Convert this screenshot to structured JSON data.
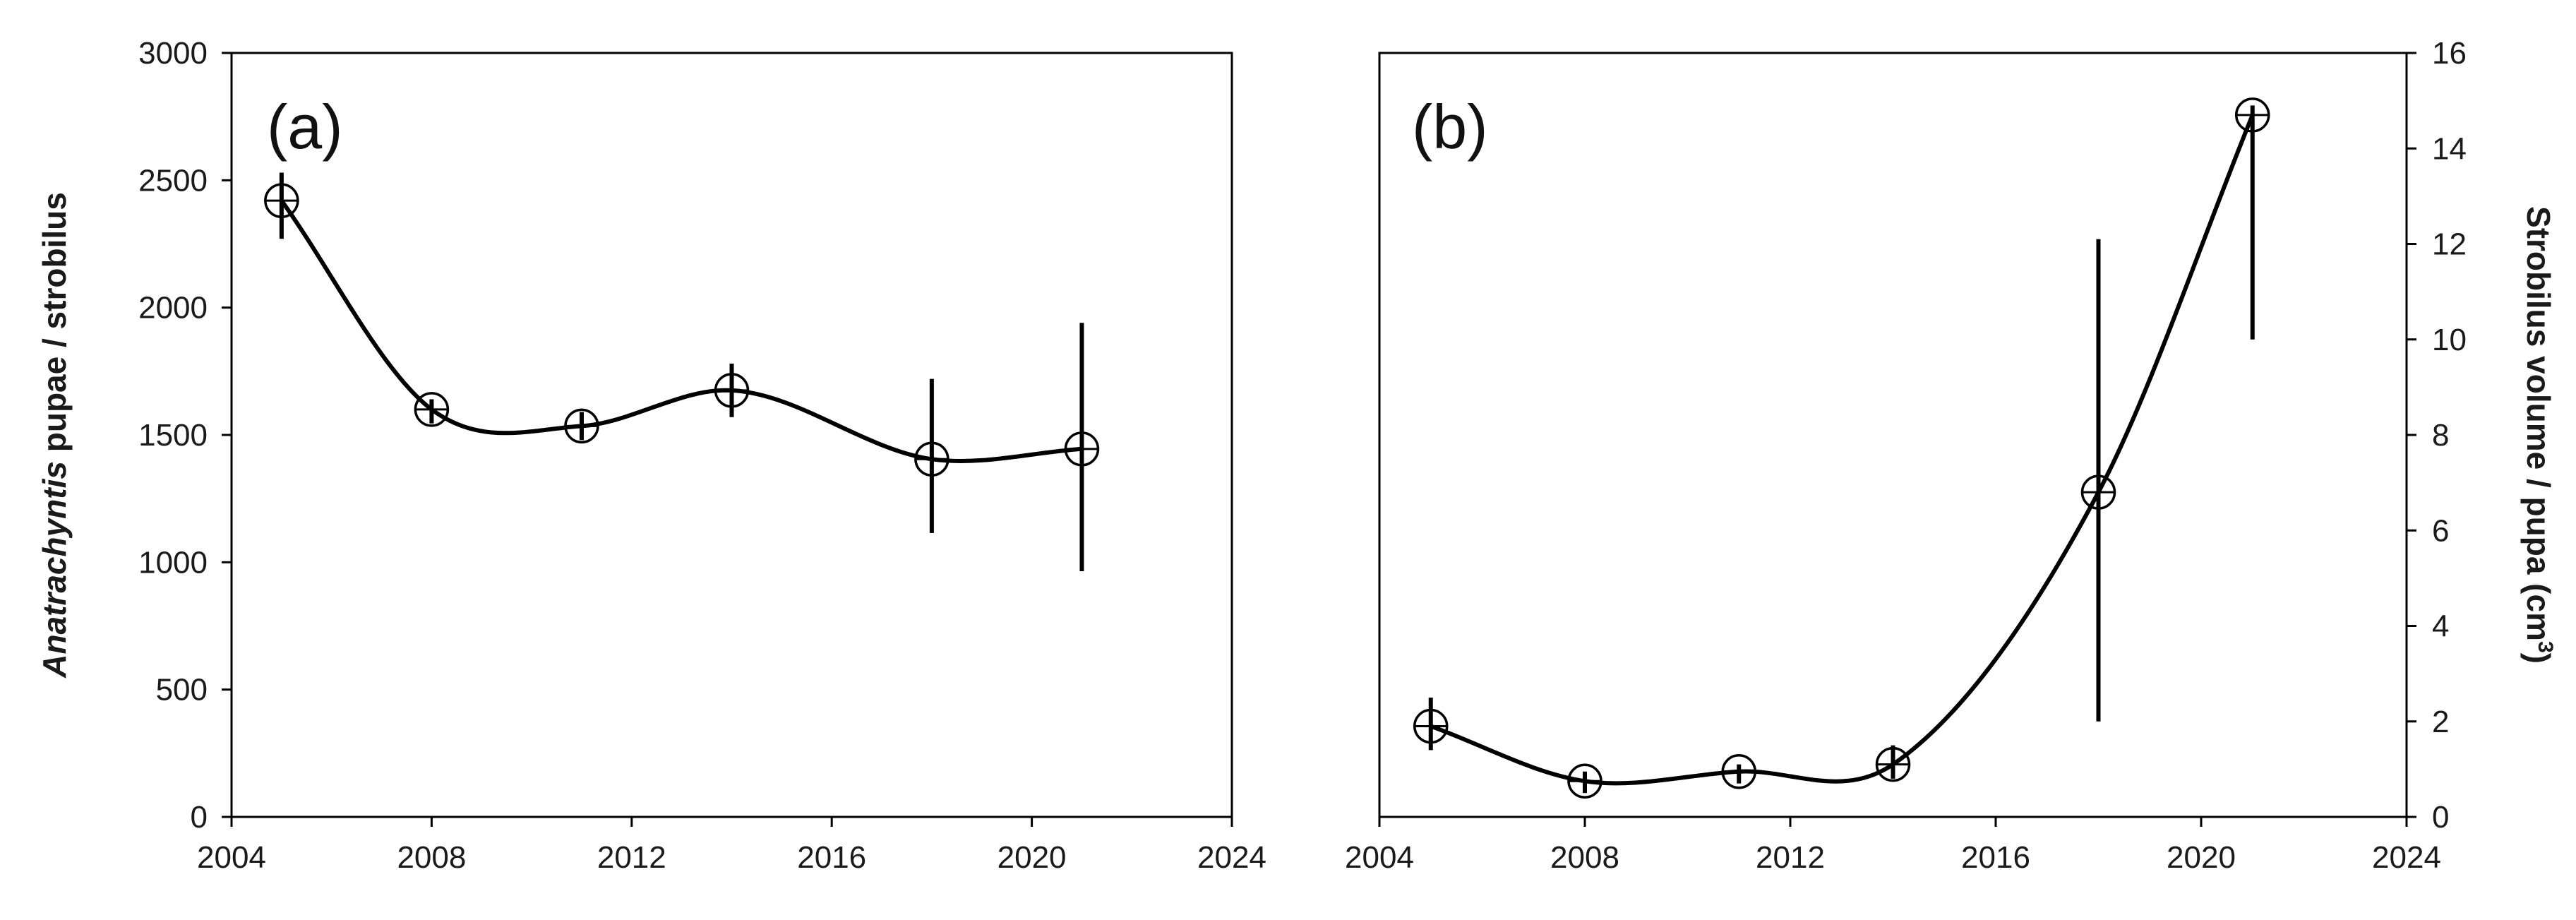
{
  "chart_data": [
    {
      "type": "line",
      "panel_label": "(a)",
      "ylabel_italic": "Anatrachyntis",
      "ylabel_rest": " pupae / strobilus",
      "xlim": [
        2004,
        2024
      ],
      "ylim": [
        0,
        3000
      ],
      "x_ticks": [
        2004,
        2008,
        2012,
        2016,
        2020,
        2024
      ],
      "y_ticks": [
        0,
        500,
        1000,
        1500,
        2000,
        2500,
        3000
      ],
      "y_axis_side": "left",
      "grid": false,
      "legend": "none",
      "x": [
        2005,
        2008,
        2011,
        2014,
        2018,
        2021
      ],
      "y": [
        2420,
        1600,
        1535,
        1675,
        1405,
        1445
      ],
      "err_low": [
        2270,
        1545,
        1480,
        1570,
        1115,
        965
      ],
      "err_high": [
        2530,
        1640,
        1590,
        1780,
        1720,
        1940
      ]
    },
    {
      "type": "line",
      "panel_label": "(b)",
      "ylabel_main": "Strobilus volume / pupa (cm",
      "ylabel_sup": "3",
      "ylabel_close": ")",
      "xlim": [
        2004,
        2024
      ],
      "ylim": [
        0,
        16
      ],
      "x_ticks": [
        2004,
        2008,
        2012,
        2016,
        2020,
        2024
      ],
      "y_ticks": [
        0,
        2,
        4,
        6,
        8,
        10,
        12,
        14,
        16
      ],
      "y_axis_side": "right",
      "grid": false,
      "legend": "none",
      "x": [
        2005,
        2008,
        2011,
        2014,
        2018,
        2021
      ],
      "y": [
        1.9,
        0.75,
        0.95,
        1.1,
        6.8,
        14.7
      ],
      "err_low": [
        1.4,
        0.5,
        0.7,
        0.8,
        2.0,
        10.0
      ],
      "err_high": [
        2.5,
        0.95,
        1.1,
        1.5,
        12.1,
        14.9
      ]
    }
  ]
}
